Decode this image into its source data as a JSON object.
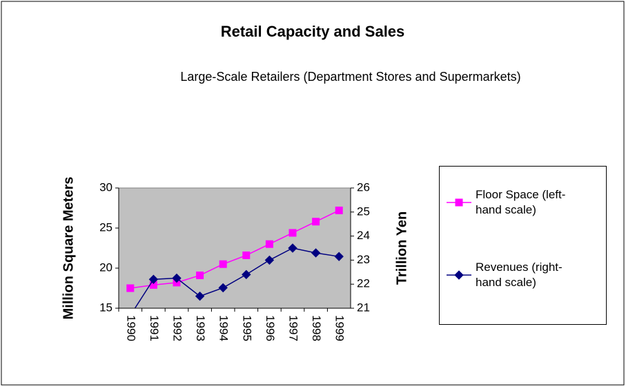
{
  "chart_data": {
    "type": "line",
    "title": "Retail Capacity and Sales",
    "subtitle": "Large-Scale Retailers (Department Stores and Supermarkets)",
    "y_label": "Million Square Meters",
    "y2_label": "Trillion Yen",
    "categories": [
      "1990",
      "1991",
      "1992",
      "1993",
      "1994",
      "1995",
      "1996",
      "1997",
      "1998",
      "1999"
    ],
    "series": [
      {
        "name": "Floor Space (left-hand scale)",
        "color": "#ff00ff",
        "marker": "square",
        "values": [
          17.5,
          17.9,
          18.2,
          19.1,
          20.5,
          21.6,
          23.0,
          24.4,
          25.8,
          27.2
        ]
      },
      {
        "name": "Revenues (right-hand scale)",
        "color": "#000080",
        "marker": "diamond",
        "axis": "y2",
        "values": [
          20.7,
          22.2,
          22.25,
          21.5,
          21.85,
          22.4,
          23.0,
          23.5,
          23.3,
          23.15
        ]
      }
    ],
    "ylim": [
      15,
      30
    ],
    "yticks": [
      15,
      20,
      25,
      30
    ],
    "y2lim": [
      21,
      26
    ],
    "y2ticks": [
      21,
      22,
      23,
      24,
      25,
      26
    ],
    "legend": "right"
  }
}
